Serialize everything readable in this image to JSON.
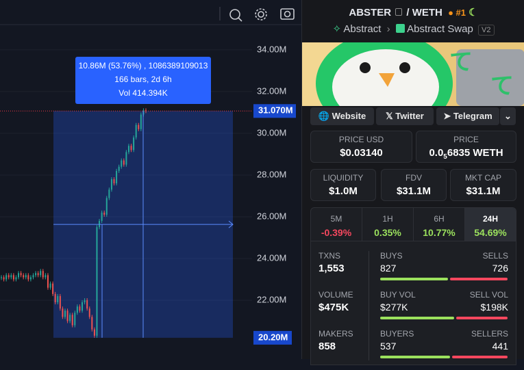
{
  "chart": {
    "type": "candlestick",
    "ylim": [
      19.18,
      36.39
    ],
    "yticks": [
      {
        "value": 34,
        "label": "34.00M"
      },
      {
        "value": 32,
        "label": "32.00M"
      },
      {
        "value": 30,
        "label": "30.00M"
      },
      {
        "value": 28,
        "label": "28.00M"
      },
      {
        "value": 26,
        "label": "26.00M"
      },
      {
        "value": 24,
        "label": "24.00M"
      },
      {
        "value": 22,
        "label": "22.00M"
      }
    ],
    "last_price": {
      "value": 31.07,
      "label": "31.070M"
    },
    "range_low": {
      "value": 20.2,
      "label": "20.20M"
    },
    "tooltip": [
      "10.86M (53.76%) , 1086389109013",
      "166 bars, 2d 6h",
      "Vol 414.394K"
    ],
    "closes": [
      23.1,
      23.0,
      23.2,
      23.1,
      23.2,
      23.0,
      23.1,
      23.3,
      23.2,
      23.1,
      23.2,
      23.0,
      23.1,
      23.2,
      23.3,
      23.2,
      23.4,
      23.1,
      23.2,
      22.6,
      22.8,
      22.3,
      21.9,
      22.2,
      21.6,
      21.2,
      21.5,
      21.0,
      21.3,
      20.8,
      21.4,
      21.7,
      21.5,
      21.9,
      22.0,
      21.6,
      21.2,
      20.6,
      20.3,
      25.5,
      25.8,
      26.2,
      26.1,
      26.9,
      27.3,
      27.8,
      27.6,
      28.2,
      28.4,
      28.7,
      28.5,
      29.1,
      29.4,
      29.2,
      29.8,
      30.4,
      30.2,
      30.9,
      31.1,
      31.07
    ]
  },
  "header": {
    "token": "ABSTER",
    "pair": "/ WETH",
    "rank": "#1",
    "chain": "Abstract",
    "dex": "Abstract Swap",
    "version": "V2"
  },
  "links": [
    "Website",
    "Twitter",
    "Telegram"
  ],
  "prices": {
    "usd_label": "PRICE USD",
    "usd": "$0.03140",
    "native_label": "PRICE",
    "native_lead": "0.0",
    "native_zeros": "5",
    "native_rest": "6835 WETH"
  },
  "metrics": [
    {
      "label": "LIQUIDITY",
      "value": "$1.0M"
    },
    {
      "label": "FDV",
      "value": "$31.1M"
    },
    {
      "label": "MKT CAP",
      "value": "$31.1M"
    }
  ],
  "timeframes": [
    {
      "label": "5M",
      "change": "-0.39%"
    },
    {
      "label": "1H",
      "change": "0.35%"
    },
    {
      "label": "6H",
      "change": "10.77%"
    },
    {
      "label": "24H",
      "change": "54.69%"
    }
  ],
  "stats": [
    {
      "label": "TXNS",
      "value": "1,553",
      "left_label": "BUYS",
      "left": "827",
      "right_label": "SELLS",
      "right": "726"
    },
    {
      "label": "VOLUME",
      "value": "$475K",
      "left_label": "BUY VOL",
      "left": "$277K",
      "right_label": "SELL VOL",
      "right": "$198K"
    },
    {
      "label": "MAKERS",
      "value": "858",
      "left_label": "BUYERS",
      "left": "537",
      "right_label": "SELLERS",
      "right": "441"
    }
  ]
}
